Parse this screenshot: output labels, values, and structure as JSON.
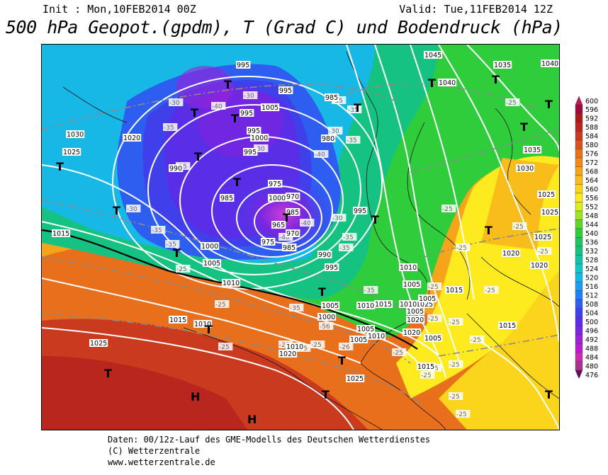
{
  "header": {
    "init": "Init : Mon,10FEB2014 00Z",
    "valid": "Valid: Tue,11FEB2014 12Z",
    "title": "500 hPa Geopot.(gpdm), T (Grad C) und Bodendruck (hPa)"
  },
  "legend": {
    "arrow_top": "600",
    "arrow_bottom": "476",
    "levels": [
      {
        "value": "596",
        "color": "#9c0b3c"
      },
      {
        "value": "592",
        "color": "#a91a1a"
      },
      {
        "value": "588",
        "color": "#b8261d"
      },
      {
        "value": "584",
        "color": "#c93a1e"
      },
      {
        "value": "580",
        "color": "#d9511d"
      },
      {
        "value": "576",
        "color": "#e86f1c"
      },
      {
        "value": "572",
        "color": "#f08a1b"
      },
      {
        "value": "568",
        "color": "#f5a41b"
      },
      {
        "value": "564",
        "color": "#f8bd1b"
      },
      {
        "value": "560",
        "color": "#fbd51c"
      },
      {
        "value": "556",
        "color": "#fdeb1f"
      },
      {
        "value": "552",
        "color": "#d9f01e"
      },
      {
        "value": "548",
        "color": "#9de522"
      },
      {
        "value": "544",
        "color": "#5fd62a"
      },
      {
        "value": "540",
        "color": "#2fcd3c"
      },
      {
        "value": "536",
        "color": "#1fc45e"
      },
      {
        "value": "532",
        "color": "#16c282"
      },
      {
        "value": "528",
        "color": "#12c3a5"
      },
      {
        "value": "524",
        "color": "#12c7c9"
      },
      {
        "value": "520",
        "color": "#17b8e6"
      },
      {
        "value": "516",
        "color": "#1b9cf0"
      },
      {
        "value": "512",
        "color": "#1f7ff4"
      },
      {
        "value": "508",
        "color": "#2d5ef0"
      },
      {
        "value": "504",
        "color": "#4040ea"
      },
      {
        "value": "500",
        "color": "#5a2ee6"
      },
      {
        "value": "496",
        "color": "#7a25e0"
      },
      {
        "value": "492",
        "color": "#9a22d8"
      },
      {
        "value": "488",
        "color": "#b81fca"
      },
      {
        "value": "484",
        "color": "#c92cb0"
      },
      {
        "value": "480",
        "color": "#a8338e"
      }
    ],
    "arrow_top_color": "#c8145a",
    "arrow_bottom_color": "#6b0a5c"
  },
  "map": {
    "isobar_labels": [
      "995",
      "995",
      "995",
      "1005",
      "995",
      "985",
      "1000",
      "995",
      "990",
      "980",
      "975",
      "985",
      "1000",
      "970",
      "985",
      "975",
      "970",
      "965",
      "985",
      "995",
      "990",
      "1000",
      "1005",
      "1010",
      "995",
      "1010",
      "1005",
      "1030",
      "1025",
      "1020",
      "1015",
      "1045",
      "1035",
      "1040",
      "1040",
      "1035",
      "1030",
      "1025",
      "1025",
      "1025",
      "1020",
      "1020",
      "1015",
      "1015",
      "1025",
      "1020",
      "1020",
      "1015",
      "1010",
      "1010",
      "1010",
      "1005",
      "1005",
      "1005",
      "1005",
      "1005",
      "1000",
      "1005",
      "1010",
      "1015",
      "1025",
      "1025",
      "1020",
      "1015",
      "1010"
    ],
    "temp_labels": [
      "-30",
      "-35",
      "-35",
      "-35",
      "-35",
      "-30",
      "-30",
      "-40",
      "-40",
      "-40",
      "-40",
      "-35",
      "-30",
      "-30",
      "-35",
      "-35",
      "-35",
      "-30",
      "-25",
      "-25",
      "-25",
      "-25",
      "-25",
      "-25",
      "-35",
      "-35",
      "-35",
      "-25",
      "-25",
      "-25",
      "-25",
      "-25",
      "-25",
      "-25",
      "-25",
      "-25",
      "-25",
      "-25",
      "-25",
      "-25",
      "-25",
      "-26",
      "-25",
      "-25"
    ],
    "pressure_centers": [
      "T",
      "T",
      "T",
      "T",
      "T",
      "T",
      "T",
      "T",
      "T",
      "T",
      "T",
      "T",
      "T",
      "T",
      "T",
      "T",
      "T",
      "T",
      "T",
      "T",
      "T",
      "T",
      "H",
      "H"
    ],
    "extra_label": "-56"
  },
  "footer": {
    "line1": "Daten: 00/12z-Lauf des GME-Modells des Deutschen Wetterdienstes",
    "line2": "(C) Wetterzentrale",
    "line3": "www.wetterzentrale.de"
  }
}
